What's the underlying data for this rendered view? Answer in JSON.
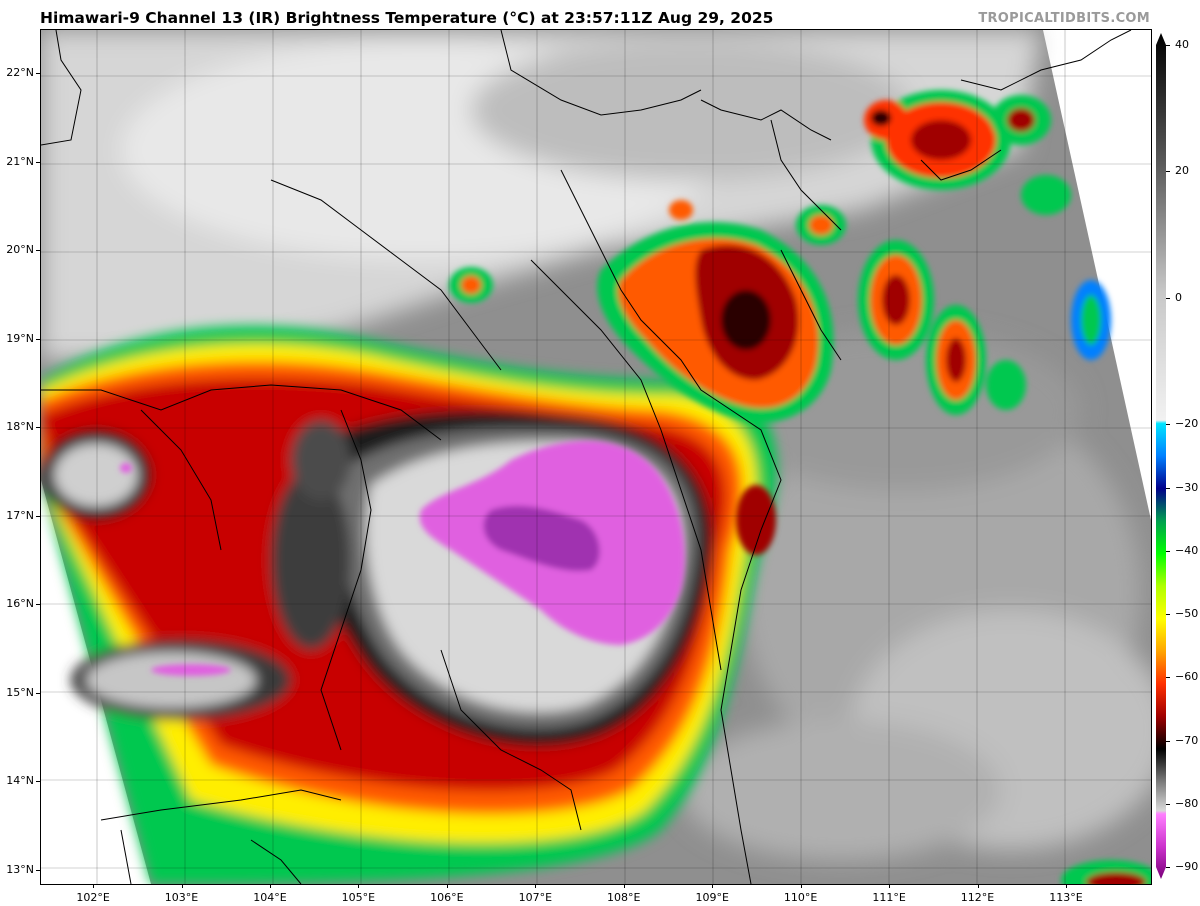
{
  "header": {
    "title": "Himawari-9 Channel 13 (IR) Brightness Temperature (°C) at 23:57:11Z Aug 29, 2025",
    "credit": "TROPICALTIDBITS.COM"
  },
  "map": {
    "lon_range": [
      101.4,
      113.95
    ],
    "lat_range": [
      12.85,
      22.5
    ],
    "lat_ticks": [
      {
        "value": 13,
        "label": "13°N"
      },
      {
        "value": 14,
        "label": "14°N"
      },
      {
        "value": 15,
        "label": "15°N"
      },
      {
        "value": 16,
        "label": "16°N"
      },
      {
        "value": 17,
        "label": "17°N"
      },
      {
        "value": 18,
        "label": "18°N"
      },
      {
        "value": 19,
        "label": "19°N"
      },
      {
        "value": 20,
        "label": "20°N"
      },
      {
        "value": 21,
        "label": "21°N"
      },
      {
        "value": 22,
        "label": "22°N"
      }
    ],
    "lon_ticks": [
      {
        "value": 102,
        "label": "102°E"
      },
      {
        "value": 103,
        "label": "103°E"
      },
      {
        "value": 104,
        "label": "104°E"
      },
      {
        "value": 105,
        "label": "105°E"
      },
      {
        "value": 106,
        "label": "106°E"
      },
      {
        "value": 107,
        "label": "107°E"
      },
      {
        "value": 108,
        "label": "108°E"
      },
      {
        "value": 109,
        "label": "109°E"
      },
      {
        "value": 110,
        "label": "110°E"
      },
      {
        "value": 111,
        "label": "111°E"
      },
      {
        "value": 112,
        "label": "112°E"
      },
      {
        "value": 113,
        "label": "113°E"
      }
    ]
  },
  "colorbar": {
    "range": [
      -90,
      40
    ],
    "labels": [
      {
        "value": 40,
        "label": "40"
      },
      {
        "value": 20,
        "label": "20"
      },
      {
        "value": 0,
        "label": "0"
      },
      {
        "value": -20,
        "label": "−20"
      },
      {
        "value": -30,
        "label": "−30"
      },
      {
        "value": -40,
        "label": "−40"
      },
      {
        "value": -50,
        "label": "−50"
      },
      {
        "value": -60,
        "label": "−60"
      },
      {
        "value": -70,
        "label": "−70"
      },
      {
        "value": -80,
        "label": "−80"
      },
      {
        "value": -90,
        "label": "−90"
      }
    ],
    "stops": [
      {
        "t": 40,
        "color": "#000000"
      },
      {
        "t": 20,
        "color": "#5a5a5a"
      },
      {
        "t": 0,
        "color": "#c8c8c8"
      },
      {
        "t": -19.5,
        "color": "#f2f2f2"
      },
      {
        "t": -20,
        "color": "#00e5ff"
      },
      {
        "t": -25,
        "color": "#0080ff"
      },
      {
        "t": -30,
        "color": "#00008b"
      },
      {
        "t": -35,
        "color": "#00a050"
      },
      {
        "t": -40,
        "color": "#00ff00"
      },
      {
        "t": -45,
        "color": "#b0ff00"
      },
      {
        "t": -50,
        "color": "#ffff00"
      },
      {
        "t": -55,
        "color": "#ffa500"
      },
      {
        "t": -60,
        "color": "#ff3000"
      },
      {
        "t": -65,
        "color": "#a00000"
      },
      {
        "t": -70,
        "color": "#000000"
      },
      {
        "t": -75,
        "color": "#7a7a7a"
      },
      {
        "t": -79.5,
        "color": "#d8d8d8"
      },
      {
        "t": -80,
        "color": "#ff80ff"
      },
      {
        "t": -85,
        "color": "#cc33cc"
      },
      {
        "t": -90,
        "color": "#7a007a"
      }
    ]
  },
  "colors": {
    "cold_top_magenta": "#e060e0",
    "deep_core_purple": "#a030b0",
    "gray_background": "#8a8a8a",
    "coastline": "#000000"
  }
}
